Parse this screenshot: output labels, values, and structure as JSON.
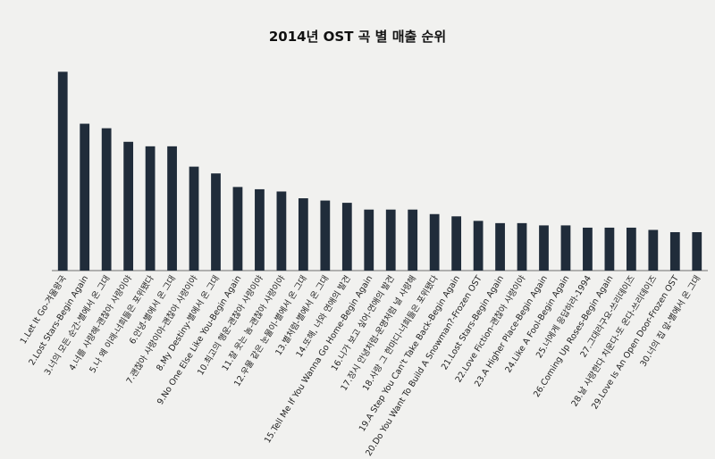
{
  "chart_data": {
    "type": "bar",
    "title": "2014년 OST  곡 별 매출 순위",
    "xlabel": "",
    "ylabel": "",
    "grid": false,
    "legend": "none",
    "bar_color": "#202c3a",
    "axis_color": "#9a9a9a",
    "ylim": [
      0,
      100
    ],
    "categories": [
      "1.Let It Go-겨울왕국",
      "2.Lost Stars-Begin Again",
      "3.너의 모든 순간-별에서 온 그대",
      "4.너를 사랑해-괜찮아 사랑이야",
      "5.나 왜 이래-너희들은 포위됐다",
      "6.안녕-별에서 온 그대",
      "7.괜찮아 사랑이야-괜찮아 사랑이야",
      "8.My Destiny-별에서 온 그대",
      "9.No One Else Like You-Begin Again",
      "10.최고의 행운-괜찮아 사랑이야",
      "11.잘 웃는 놈-괜찮아 사랑이야",
      "12.우물 같은 눈물이-별에서 온 그대",
      "13.별처럼-별에서 온 그대",
      "14.또해, 너와 연애의 발견",
      "15.Tell Me If You Wanna Go Home-Begin Again",
      "16.니가 보고 싶어-연애의 발견",
      "17.장시 안녕처럼-운명처럼 널 사랑해",
      "18.사랑 그 한마디-너희들은 포위됐다",
      "19.A Step You Can't Take Back-Begin Again",
      "20.Do You Want To Build A Snowman?-Frozen OST",
      "21.Lost Stars-Begin Again",
      "22.Love Fiction-괜찮아 사랑이야",
      "23.A Higher Place-Begin Again",
      "24.Like A Fool-Begin Again",
      "25.너에게 응답하라-1994",
      "26.Coming Up Roses-Begin Again",
      "27.그대라구요-쓰리데이즈",
      "28.날 사랑한다 치운다-또 온다-쓰리데이즈",
      "29.Love Is An Open Door-Frozen OST",
      "30.너의 집 앞-별에서 온 그대"
    ],
    "values": [
      88,
      65,
      63,
      57,
      55,
      55,
      46,
      43,
      37,
      36,
      35,
      32,
      31,
      30,
      27,
      27,
      27,
      25,
      24,
      22,
      21,
      21,
      20,
      20,
      19,
      19,
      19,
      18,
      17,
      17
    ]
  }
}
